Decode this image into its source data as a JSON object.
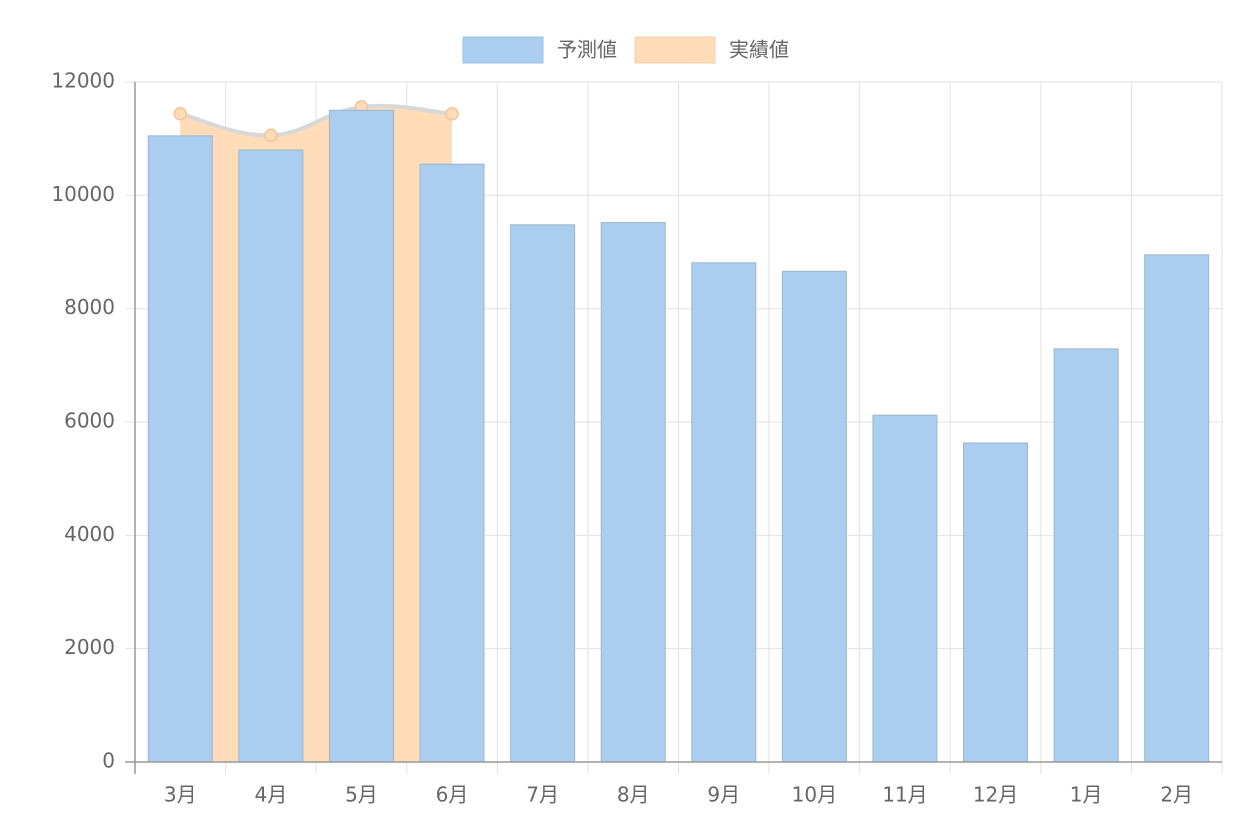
{
  "chart_data": {
    "type": "bar",
    "categories": [
      "3月",
      "4月",
      "5月",
      "6月",
      "7月",
      "8月",
      "9月",
      "10月",
      "11月",
      "12月",
      "1月",
      "2月"
    ],
    "series": [
      {
        "name": "予測値",
        "type": "bar",
        "color": "#abcdef",
        "values": [
          11050,
          10800,
          11500,
          10550,
          9480,
          9520,
          8810,
          8660,
          6120,
          5630,
          7290,
          8950
        ]
      },
      {
        "name": "実績値",
        "type": "area",
        "color": "#ffdcb8",
        "values": [
          11440,
          11060,
          11560,
          11440,
          null,
          null,
          null,
          null,
          null,
          null,
          null,
          null
        ]
      }
    ],
    "ylim": [
      0,
      12000
    ],
    "yticks": [
      0,
      2000,
      4000,
      6000,
      8000,
      10000,
      12000
    ],
    "grid": true
  }
}
